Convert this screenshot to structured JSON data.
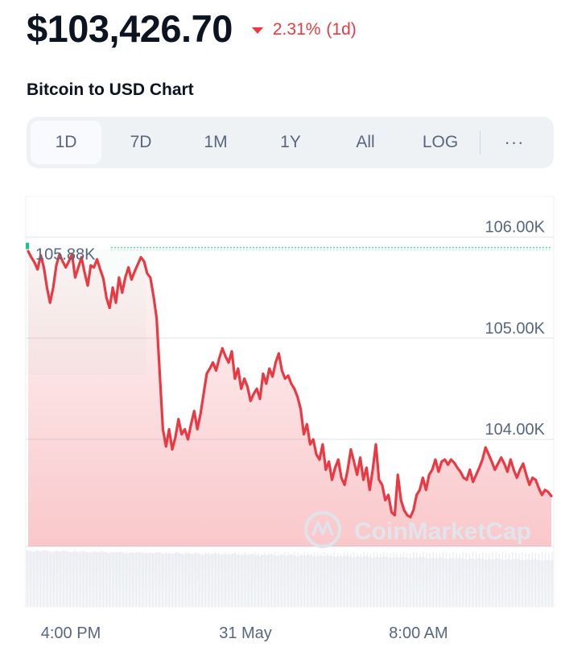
{
  "header": {
    "price": "$103,426.70",
    "change_pct": "2.31%",
    "change_period": "(1d)",
    "change_direction": "down",
    "change_color": "#ea3943"
  },
  "chart_title": "Bitcoin to USD Chart",
  "range_tabs": [
    {
      "label": "1D",
      "active": true
    },
    {
      "label": "7D",
      "active": false
    },
    {
      "label": "1M",
      "active": false
    },
    {
      "label": "1Y",
      "active": false
    },
    {
      "label": "All",
      "active": false
    },
    {
      "label": "LOG",
      "active": false
    }
  ],
  "more_button": "···",
  "watermark": "CoinMarketCap",
  "reference_label": "105.88K",
  "colors": {
    "line": "#ea3943",
    "reference": "#16c784",
    "grid": "#e9edf2"
  },
  "chart_data": {
    "type": "line",
    "title": "Bitcoin to USD Chart",
    "y_unit": "USD",
    "ylim": [
      102870,
      106450
    ],
    "y_ticks": [
      {
        "value": 106000,
        "label": "106.00K"
      },
      {
        "value": 105000,
        "label": "105.00K"
      },
      {
        "value": 104000,
        "label": "104.00K"
      }
    ],
    "x_ticks": [
      {
        "t": 0.06,
        "label": "4:00 PM"
      },
      {
        "t": 0.42,
        "label": "31 May"
      },
      {
        "t": 0.78,
        "label": "8:00 AM"
      }
    ],
    "reference_value": 105880,
    "grid": true,
    "series": [
      {
        "values": [
          105860,
          105800,
          105750,
          105680,
          105820,
          105700,
          105500,
          105350,
          105500,
          105720,
          105830,
          105760,
          105700,
          105760,
          105830,
          105600,
          105700,
          105800,
          105650,
          105520,
          105720,
          105700,
          105780,
          105680,
          105590,
          105400,
          105300,
          105500,
          105350,
          105600,
          105450,
          105600,
          105700,
          105580,
          105660,
          105730,
          105800,
          105760,
          105640,
          105600,
          105420,
          105200,
          104650,
          104100,
          103930,
          104100,
          103900,
          104020,
          104200,
          104050,
          104100,
          104000,
          104150,
          104280,
          104100,
          104250,
          104450,
          104650,
          104700,
          104760,
          104680,
          104800,
          104900,
          104820,
          104760,
          104870,
          104600,
          104700,
          104500,
          104600,
          104520,
          104380,
          104450,
          104500,
          104400,
          104650,
          104550,
          104700,
          104620,
          104760,
          104850,
          104680,
          104600,
          104630,
          104550,
          104500,
          104420,
          104300,
          104050,
          104150,
          103950,
          104000,
          103850,
          103800,
          103950,
          103700,
          103780,
          103600,
          103720,
          103800,
          103620,
          103550,
          103700,
          103900,
          103780,
          103650,
          103820,
          103600,
          103720,
          103500,
          103700,
          103950,
          103600,
          103550,
          103400,
          103450,
          103280,
          103250,
          103650,
          103400,
          103300,
          103250,
          103230,
          103300,
          103450,
          103500,
          103620,
          103500,
          103650,
          103700,
          103800,
          103680,
          103780,
          103800,
          103750,
          103800,
          103770,
          103720,
          103680,
          103620,
          103600,
          103700,
          103580,
          103650,
          103720,
          103800,
          103920,
          103850,
          103780,
          103700,
          103760,
          103820,
          103760,
          103680,
          103800,
          103700,
          103620,
          103700,
          103760,
          103650,
          103550,
          103620,
          103600,
          103520,
          103450,
          103500,
          103480,
          103440
        ]
      }
    ]
  }
}
